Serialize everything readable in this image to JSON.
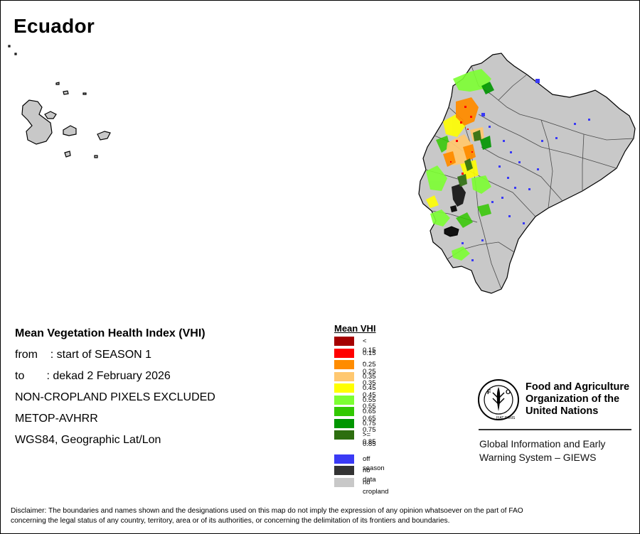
{
  "map": {
    "title": "Ecuador",
    "country": "Ecuador",
    "islands": "Galápagos",
    "colors": {
      "cropland_none": "#c8c8c8",
      "border": "#4a4a4a",
      "outline": "#000000"
    }
  },
  "info": {
    "title": "Mean Vegetation Health Index (VHI)",
    "from_line": "from    : start of SEASON 1",
    "to_line": "to       : dekad 2 February 2026",
    "mask_line": "NON-CROPLAND PIXELS EXCLUDED",
    "sensor_line": "METOP-AVHRR",
    "projection_line": "WGS84, Geographic Lat/Lon"
  },
  "legend": {
    "title": "Mean VHI",
    "classes": [
      {
        "label": "< 0.15",
        "color": "#a50000"
      },
      {
        "label": "0.15 - 0.25",
        "color": "#ff0000"
      },
      {
        "label": "0.25 - 0.35",
        "color": "#ff8c00"
      },
      {
        "label": "0.35 - 0.45",
        "color": "#ffc870"
      },
      {
        "label": "0.45 - 0.55",
        "color": "#ffff00"
      },
      {
        "label": "0.55 - 0.65",
        "color": "#7cff32"
      },
      {
        "label": "0.65 - 0.75",
        "color": "#32c800"
      },
      {
        "label": "0.75 - 0.85",
        "color": "#009600"
      },
      {
        "label": ">= 0.85",
        "color": "#2d6e0f"
      }
    ],
    "extra": [
      {
        "label": "off season",
        "color": "#3a3af5"
      },
      {
        "label": "no data",
        "color": "#333333"
      },
      {
        "label": "no cropland",
        "color": "#c8c8c8"
      }
    ]
  },
  "fao": {
    "logo_text": "FAO",
    "motto": "FIAT PANIS",
    "org_line1": "Food and Agriculture",
    "org_line2": "Organization of the",
    "org_line3": "United Nations",
    "giews_line1": "Global Information and Early",
    "giews_line2": "Warning System – GIEWS"
  },
  "disclaimer": {
    "line1": "Disclaimer: The boundaries and names shown and the designations used on this map do not imply the expression of any opinion whatsoever on the part of FAO",
    "line2": "concerning the legal status of any country, territory, area or of its authorities, or concerning the delimitation of its frontiers and boundaries."
  }
}
